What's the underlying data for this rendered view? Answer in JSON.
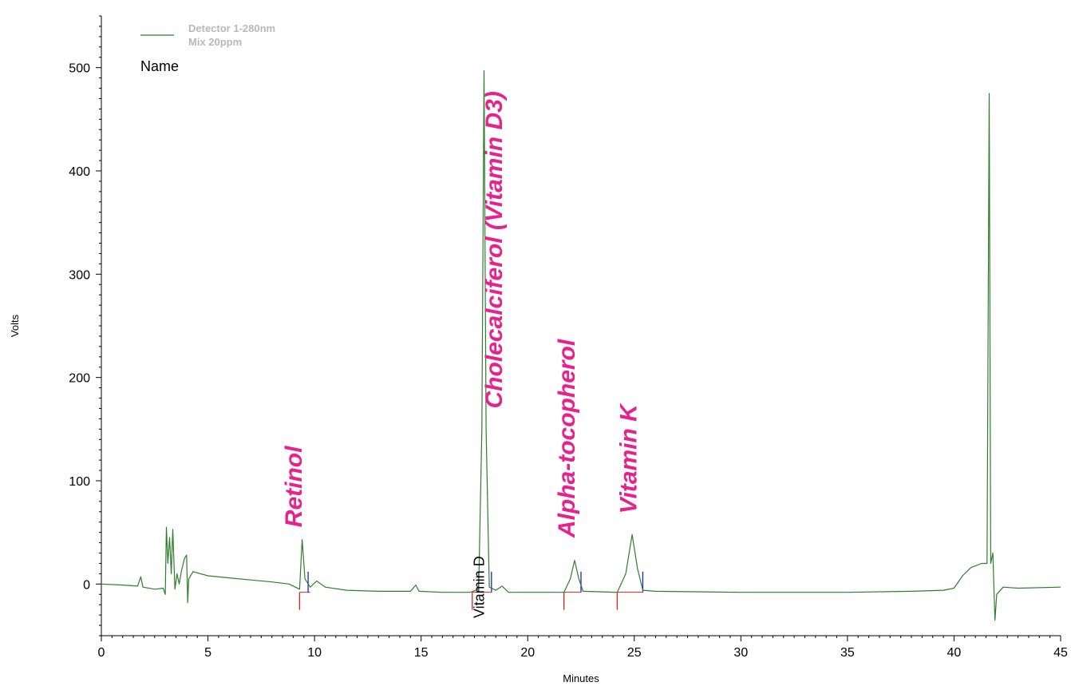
{
  "chart_data": {
    "type": "line",
    "xlabel": "Minutes",
    "ylabel": "Volts",
    "xlim": [
      0,
      45
    ],
    "ylim": [
      -50,
      550
    ],
    "x_ticks": [
      0,
      5,
      10,
      15,
      20,
      25,
      30,
      35,
      40,
      45
    ],
    "y_ticks": [
      0,
      100,
      200,
      300,
      400,
      500
    ],
    "grid": false,
    "legend": {
      "position": "top-left",
      "entries": [
        "Detector 1-280nm",
        "Mix 20ppm"
      ],
      "color": "#2e7d2e"
    },
    "legend_header": "Name",
    "series": [
      {
        "color": "#2e7d2e",
        "points": [
          [
            0,
            0
          ],
          [
            1.0,
            -1
          ],
          [
            1.7,
            -2
          ],
          [
            1.85,
            7
          ],
          [
            1.95,
            -3
          ],
          [
            2.5,
            -5
          ],
          [
            2.9,
            -4
          ],
          [
            3.0,
            -10
          ],
          [
            3.05,
            55
          ],
          [
            3.12,
            20
          ],
          [
            3.2,
            45
          ],
          [
            3.28,
            10
          ],
          [
            3.35,
            53
          ],
          [
            3.45,
            -5
          ],
          [
            3.55,
            10
          ],
          [
            3.65,
            0
          ],
          [
            3.75,
            12
          ],
          [
            3.9,
            25
          ],
          [
            4.0,
            28
          ],
          [
            4.05,
            -18
          ],
          [
            4.1,
            5
          ],
          [
            4.3,
            12
          ],
          [
            5,
            8
          ],
          [
            6,
            6
          ],
          [
            7,
            4
          ],
          [
            8,
            2
          ],
          [
            8.8,
            0
          ],
          [
            9.1,
            -3
          ],
          [
            9.3,
            -5
          ],
          [
            9.42,
            43
          ],
          [
            9.55,
            5
          ],
          [
            9.8,
            -3
          ],
          [
            10.1,
            3
          ],
          [
            10.5,
            -3
          ],
          [
            11.5,
            -6
          ],
          [
            13,
            -7
          ],
          [
            14.5,
            -7
          ],
          [
            14.75,
            -1
          ],
          [
            14.9,
            -7
          ],
          [
            16,
            -8
          ],
          [
            17.3,
            -8
          ],
          [
            17.7,
            -5
          ],
          [
            17.85,
            150
          ],
          [
            17.95,
            497
          ],
          [
            18.05,
            150
          ],
          [
            18.2,
            -3
          ],
          [
            18.5,
            -6
          ],
          [
            18.8,
            -2
          ],
          [
            19.1,
            -8
          ],
          [
            20,
            -8
          ],
          [
            21.7,
            -8
          ],
          [
            22.0,
            5
          ],
          [
            22.2,
            23
          ],
          [
            22.4,
            5
          ],
          [
            22.6,
            -7
          ],
          [
            24.2,
            -8
          ],
          [
            24.6,
            10
          ],
          [
            24.9,
            48
          ],
          [
            25.15,
            15
          ],
          [
            25.4,
            -6
          ],
          [
            26,
            -7
          ],
          [
            30,
            -8
          ],
          [
            35,
            -8
          ],
          [
            38,
            -7
          ],
          [
            39.5,
            -6
          ],
          [
            40,
            -4
          ],
          [
            40.4,
            8
          ],
          [
            40.8,
            16
          ],
          [
            41.3,
            20
          ],
          [
            41.55,
            20
          ],
          [
            41.65,
            475
          ],
          [
            41.72,
            20
          ],
          [
            41.82,
            30
          ],
          [
            41.92,
            -35
          ],
          [
            42.0,
            -10
          ],
          [
            42.3,
            -3
          ],
          [
            43,
            -4
          ],
          [
            45,
            -3
          ]
        ]
      }
    ],
    "baseline_segments": [
      [
        9.3,
        9.8
      ],
      [
        17.4,
        18.3
      ],
      [
        21.7,
        22.5
      ],
      [
        24.2,
        25.4
      ]
    ],
    "peak_markers": [
      {
        "x": 9.3,
        "kind": "start",
        "color": "#e02020"
      },
      {
        "x": 9.7,
        "kind": "end",
        "color": "#2020c0"
      },
      {
        "x": 17.4,
        "kind": "start",
        "color": "#e02020"
      },
      {
        "x": 17.7,
        "kind": "end",
        "color": "#2020c0"
      },
      {
        "x": 18.3,
        "kind": "end",
        "color": "#2020c0"
      },
      {
        "x": 21.7,
        "kind": "start",
        "color": "#e02020"
      },
      {
        "x": 22.5,
        "kind": "end",
        "color": "#2020c0"
      },
      {
        "x": 24.2,
        "kind": "start",
        "color": "#e02020"
      },
      {
        "x": 25.4,
        "kind": "end",
        "color": "#2020c0"
      }
    ],
    "annotations": [
      {
        "text": "Retinol",
        "x": 9.4,
        "y": 55,
        "style": "big"
      },
      {
        "text": "Cholecalciferol (Vitamin D3)",
        "x": 18.8,
        "y": 170,
        "style": "big"
      },
      {
        "text": "Alpha-tocopherol",
        "x": 22.2,
        "y": 45,
        "style": "big"
      },
      {
        "text": "Vitamin K",
        "x": 25.1,
        "y": 68,
        "style": "big"
      },
      {
        "text": "Vitamin D",
        "x": 17.95,
        "y": -33,
        "style": "small"
      }
    ]
  }
}
